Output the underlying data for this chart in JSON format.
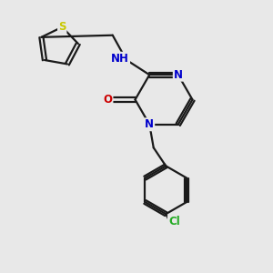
{
  "background_color": "#e8e8e8",
  "bond_color": "#1a1a1a",
  "bond_width": 1.6,
  "atom_colors": {
    "S": "#c8c800",
    "N": "#0000cc",
    "O": "#cc0000",
    "Cl": "#22aa22",
    "H": "#444444",
    "C": "#1a1a1a"
  },
  "font_size_atom": 8.5,
  "figsize": [
    3.0,
    3.0
  ],
  "dpi": 100,
  "xlim": [
    0,
    10
  ],
  "ylim": [
    0,
    10
  ]
}
